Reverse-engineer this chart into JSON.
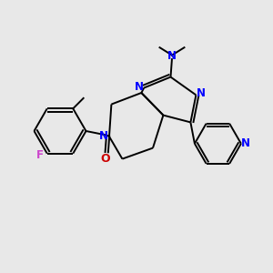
{
  "background_color": "#e8e8e8",
  "bond_color": "#000000",
  "nitrogen_color": "#0000ff",
  "oxygen_color": "#cc0000",
  "fluorine_color": "#cc44cc",
  "lw": 1.4,
  "fs": 8.5,
  "xlim": [
    0,
    1
  ],
  "ylim": [
    0,
    1
  ]
}
